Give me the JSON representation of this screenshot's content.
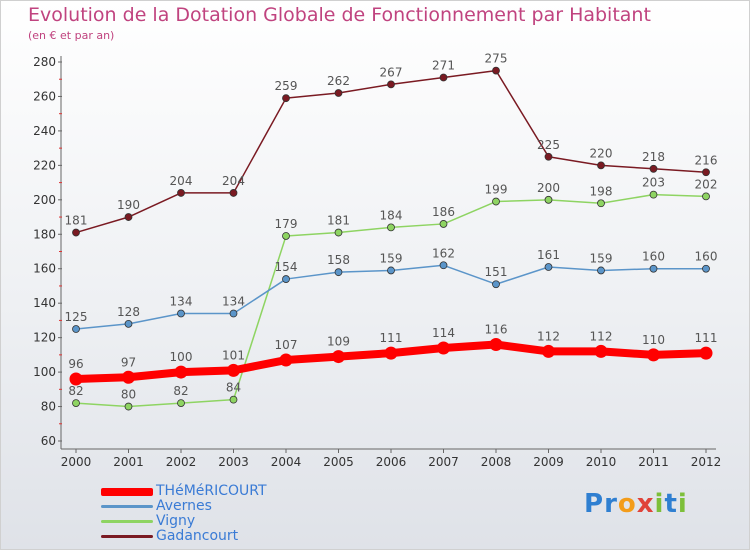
{
  "header": {
    "title": "Evolution de la Dotation Globale de Fonctionnement par Habitant",
    "subtitle": "(en € et par an)"
  },
  "brand": {
    "letters": [
      {
        "ch": "P",
        "color": "#2f7fd1"
      },
      {
        "ch": "r",
        "color": "#2f7fd1"
      },
      {
        "ch": "o",
        "color": "#f39c1a"
      },
      {
        "ch": "x",
        "color": "#e0433a"
      },
      {
        "ch": "i",
        "color": "#7dbf3a"
      },
      {
        "ch": "t",
        "color": "#2f7fd1"
      },
      {
        "ch": "i",
        "color": "#7dbf3a"
      }
    ]
  },
  "colors": {
    "axis": "#666666",
    "tick_text": "#333333",
    "value_label": "#555555",
    "legend_text": "#3a7bd5"
  },
  "chart_data": {
    "type": "line",
    "title": "Evolution de la Dotation Globale de Fonctionnement par Habitant",
    "subtitle": "(en € et par an)",
    "xlabel": "",
    "ylabel": "",
    "x": [
      "2000",
      "2001",
      "2002",
      "2003",
      "2004",
      "2005",
      "2006",
      "2007",
      "2008",
      "2009",
      "2010",
      "2011",
      "2012"
    ],
    "yticks": [
      "60",
      "80",
      "100",
      "120",
      "140",
      "160",
      "180",
      "200",
      "220",
      "240",
      "260",
      "280"
    ],
    "ylim": [
      60,
      280
    ],
    "grid": false,
    "legend_position": "bottom-left",
    "series": [
      {
        "name": "Gadancourt",
        "color": "#7a1a22",
        "emphasis": false,
        "values": [
          181,
          190,
          204,
          204,
          259,
          262,
          267,
          271,
          275,
          225,
          220,
          218,
          216
        ]
      },
      {
        "name": "Vigny",
        "color": "#8ed462",
        "emphasis": false,
        "values": [
          82,
          80,
          82,
          84,
          179,
          181,
          184,
          186,
          199,
          200,
          198,
          203,
          202
        ]
      },
      {
        "name": "Avernes",
        "color": "#5b95c9",
        "emphasis": false,
        "values": [
          125,
          128,
          134,
          134,
          154,
          158,
          159,
          162,
          151,
          161,
          159,
          160,
          160
        ]
      },
      {
        "name": "THéMéRICOURT",
        "color": "#ff0000",
        "emphasis": true,
        "values": [
          96,
          97,
          100,
          101,
          107,
          109,
          111,
          114,
          116,
          112,
          112,
          110,
          111
        ]
      }
    ],
    "legend_order": [
      "THéMéRICOURT",
      "Avernes",
      "Vigny",
      "Gadancourt"
    ]
  }
}
